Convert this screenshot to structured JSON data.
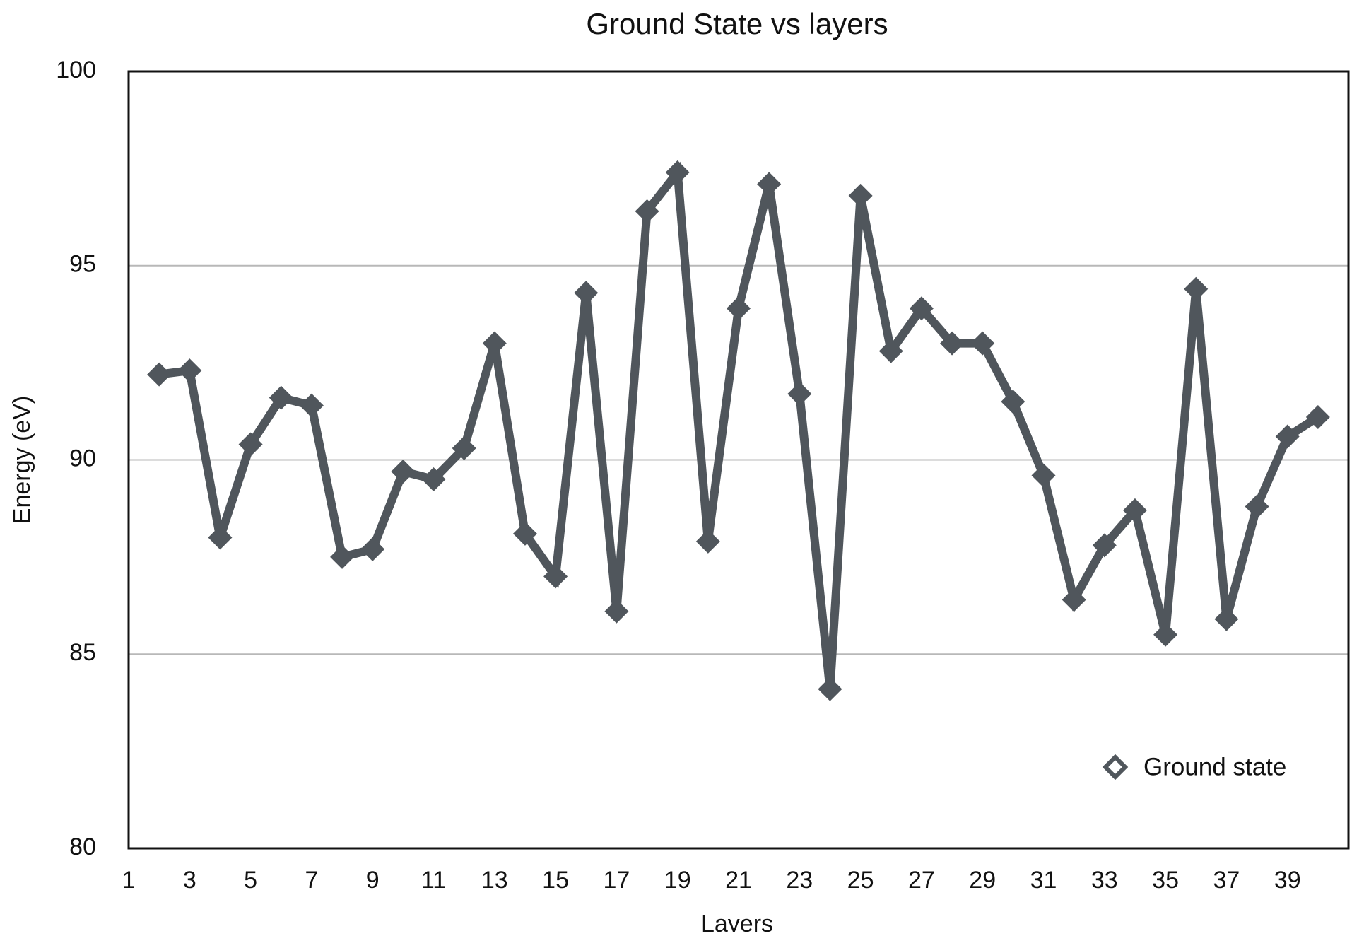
{
  "chart_data": {
    "type": "line",
    "title": "Ground State vs layers",
    "xlabel": "Layers",
    "ylabel": "Energy (eV)",
    "xlim": [
      1,
      41
    ],
    "ylim": [
      80,
      100
    ],
    "x_ticks": [
      1,
      3,
      5,
      7,
      9,
      11,
      13,
      15,
      17,
      19,
      21,
      23,
      25,
      27,
      29,
      31,
      33,
      35,
      37,
      39
    ],
    "y_ticks": [
      80,
      85,
      90,
      95,
      100
    ],
    "grid": "horizontal",
    "legend_position": "bottom-right",
    "series": [
      {
        "name": "Ground state",
        "color": "#50565c",
        "marker": "diamond",
        "x": [
          2,
          3,
          4,
          5,
          6,
          7,
          8,
          9,
          10,
          11,
          12,
          13,
          14,
          15,
          16,
          17,
          18,
          19,
          20,
          21,
          22,
          23,
          24,
          25,
          26,
          27,
          28,
          29,
          30,
          31,
          32,
          33,
          34,
          35,
          36,
          37,
          38,
          39,
          40
        ],
        "values": [
          92.2,
          92.3,
          88.0,
          90.4,
          91.6,
          91.4,
          87.5,
          87.7,
          89.7,
          89.5,
          90.3,
          93.0,
          88.1,
          87.0,
          94.3,
          86.1,
          96.4,
          97.4,
          87.9,
          93.9,
          97.1,
          91.7,
          84.1,
          96.8,
          92.8,
          93.9,
          93.0,
          93.0,
          91.5,
          89.6,
          86.4,
          87.8,
          88.7,
          85.5,
          94.4,
          85.9,
          88.8,
          90.6,
          91.1
        ]
      }
    ]
  }
}
